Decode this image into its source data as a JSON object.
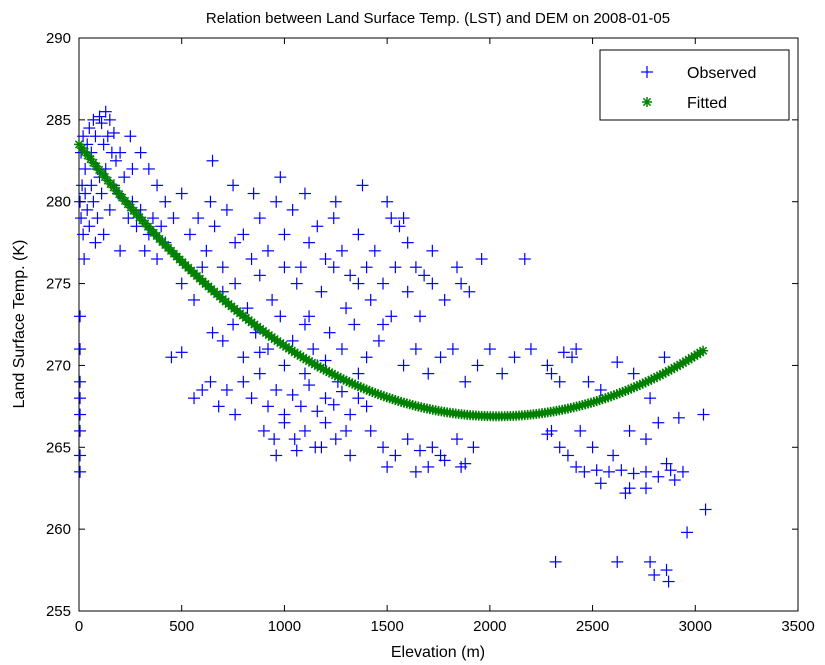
{
  "chart_data": {
    "type": "scatter",
    "title": "Relation between Land Surface Temp. (LST) and DEM on 2008-01-05",
    "xlabel": "Elevation (m)",
    "ylabel": "Land Surface Temp. (K)",
    "xlim": [
      0,
      3500
    ],
    "ylim": [
      255,
      290
    ],
    "xticks": [
      0,
      500,
      1000,
      1500,
      2000,
      2500,
      3000,
      3500
    ],
    "yticks": [
      255,
      260,
      265,
      270,
      275,
      280,
      285,
      290
    ],
    "grid": false,
    "legend_position": "top-right",
    "colors": {
      "observed": "#0000ff",
      "fitted": "#008000"
    },
    "series": [
      {
        "name": "Observed",
        "marker": "plus",
        "points": [
          [
            10,
            283
          ],
          [
            20,
            284
          ],
          [
            30,
            282
          ],
          [
            40,
            283.5
          ],
          [
            50,
            284.5
          ],
          [
            60,
            283
          ],
          [
            70,
            285
          ],
          [
            80,
            284
          ],
          [
            90,
            282
          ],
          [
            100,
            285.2
          ],
          [
            110,
            284.8
          ],
          [
            120,
            283.5
          ],
          [
            130,
            285.5
          ],
          [
            140,
            284
          ],
          [
            150,
            285
          ],
          [
            160,
            283
          ],
          [
            170,
            284.2
          ],
          [
            180,
            282.5
          ],
          [
            200,
            283
          ],
          [
            220,
            281.5
          ],
          [
            5,
            280
          ],
          [
            10,
            279
          ],
          [
            15,
            281
          ],
          [
            20,
            278
          ],
          [
            25,
            276.5
          ],
          [
            30,
            280.5
          ],
          [
            40,
            279.5
          ],
          [
            50,
            278.5
          ],
          [
            60,
            281
          ],
          [
            70,
            280
          ],
          [
            80,
            277.5
          ],
          [
            90,
            279
          ],
          [
            100,
            281.5
          ],
          [
            110,
            280.5
          ],
          [
            120,
            278
          ],
          [
            130,
            282
          ],
          [
            150,
            279.5
          ],
          [
            170,
            281
          ],
          [
            190,
            280.5
          ],
          [
            200,
            277
          ],
          [
            5,
            273
          ],
          [
            5,
            268
          ],
          [
            5,
            267
          ],
          [
            5,
            266
          ],
          [
            5,
            264.5
          ],
          [
            5,
            263.5
          ],
          [
            5,
            269
          ],
          [
            5,
            271
          ],
          [
            240,
            279
          ],
          [
            260,
            280
          ],
          [
            280,
            278.5
          ],
          [
            300,
            279.5
          ],
          [
            320,
            277
          ],
          [
            340,
            278
          ],
          [
            360,
            279
          ],
          [
            380,
            276.5
          ],
          [
            400,
            278.5
          ],
          [
            420,
            277.5
          ],
          [
            260,
            282
          ],
          [
            300,
            283
          ],
          [
            340,
            282
          ],
          [
            250,
            284
          ],
          [
            380,
            281
          ],
          [
            420,
            280
          ],
          [
            460,
            279
          ],
          [
            500,
            280.5
          ],
          [
            540,
            278
          ],
          [
            580,
            279
          ],
          [
            620,
            277
          ],
          [
            660,
            278.5
          ],
          [
            700,
            276
          ],
          [
            640,
            280
          ],
          [
            720,
            279.5
          ],
          [
            760,
            277.5
          ],
          [
            800,
            278
          ],
          [
            840,
            276.5
          ],
          [
            880,
            279
          ],
          [
            920,
            277
          ],
          [
            960,
            280
          ],
          [
            1000,
            278
          ],
          [
            1040,
            279.5
          ],
          [
            1080,
            276
          ],
          [
            1120,
            277.5
          ],
          [
            1160,
            278.5
          ],
          [
            1200,
            276.5
          ],
          [
            1240,
            279
          ],
          [
            1280,
            277
          ],
          [
            1320,
            275.5
          ],
          [
            1360,
            278
          ],
          [
            1400,
            276
          ],
          [
            1440,
            277
          ],
          [
            1480,
            275
          ],
          [
            1520,
            279
          ],
          [
            1560,
            278.5
          ],
          [
            1600,
            277.5
          ],
          [
            1640,
            276
          ],
          [
            1680,
            275.5
          ],
          [
            1720,
            277
          ],
          [
            650,
            282.5
          ],
          [
            750,
            281
          ],
          [
            850,
            280.5
          ],
          [
            980,
            281.5
          ],
          [
            1100,
            280.5
          ],
          [
            1250,
            280
          ],
          [
            1380,
            281
          ],
          [
            1500,
            280
          ],
          [
            1580,
            279
          ],
          [
            500,
            275
          ],
          [
            560,
            274
          ],
          [
            600,
            276
          ],
          [
            700,
            274.5
          ],
          [
            760,
            275
          ],
          [
            820,
            273.5
          ],
          [
            880,
            275.5
          ],
          [
            940,
            274
          ],
          [
            1000,
            276
          ],
          [
            1060,
            275
          ],
          [
            1120,
            273
          ],
          [
            1180,
            274.5
          ],
          [
            1240,
            276
          ],
          [
            1300,
            273.5
          ],
          [
            1360,
            275
          ],
          [
            1420,
            274
          ],
          [
            1480,
            272.5
          ],
          [
            1540,
            276
          ],
          [
            1600,
            274.5
          ],
          [
            1660,
            273
          ],
          [
            1720,
            275
          ],
          [
            1780,
            274
          ],
          [
            1840,
            276
          ],
          [
            1900,
            274.5
          ],
          [
            1960,
            276.5
          ],
          [
            2170,
            276.5
          ],
          [
            1860,
            275
          ],
          [
            650,
            272
          ],
          [
            700,
            271.5
          ],
          [
            750,
            272.5
          ],
          [
            800,
            270.5
          ],
          [
            860,
            272
          ],
          [
            920,
            271
          ],
          [
            980,
            273
          ],
          [
            1040,
            271.5
          ],
          [
            1100,
            272.5
          ],
          [
            1160,
            270
          ],
          [
            1220,
            272
          ],
          [
            1280,
            271
          ],
          [
            1340,
            272.5
          ],
          [
            1400,
            270.5
          ],
          [
            1460,
            271.5
          ],
          [
            1520,
            273
          ],
          [
            1580,
            270
          ],
          [
            1640,
            271
          ],
          [
            1700,
            269.5
          ],
          [
            1760,
            270.5
          ],
          [
            1820,
            271
          ],
          [
            1880,
            269
          ],
          [
            1940,
            270
          ],
          [
            2000,
            271
          ],
          [
            2060,
            269.5
          ],
          [
            2120,
            270.5
          ],
          [
            2200,
            271
          ],
          [
            2280,
            270
          ],
          [
            2340,
            269
          ],
          [
            2400,
            270.5
          ],
          [
            450,
            270.5
          ],
          [
            500,
            270.8
          ],
          [
            560,
            268
          ],
          [
            600,
            268.5
          ],
          [
            640,
            269
          ],
          [
            680,
            267.5
          ],
          [
            720,
            268.5
          ],
          [
            760,
            267
          ],
          [
            800,
            269
          ],
          [
            840,
            268
          ],
          [
            880,
            269.5
          ],
          [
            920,
            267.5
          ],
          [
            960,
            268.5
          ],
          [
            1000,
            267
          ],
          [
            1040,
            268.2
          ],
          [
            1080,
            267.5
          ],
          [
            1120,
            268.8
          ],
          [
            1160,
            267.2
          ],
          [
            1200,
            268
          ],
          [
            1240,
            267.6
          ],
          [
            1280,
            268.4
          ],
          [
            1320,
            267
          ],
          [
            1360,
            268
          ],
          [
            1400,
            267.5
          ],
          [
            900,
            266
          ],
          [
            950,
            265.5
          ],
          [
            1000,
            266.5
          ],
          [
            1050,
            265.5
          ],
          [
            1100,
            266
          ],
          [
            1150,
            265
          ],
          [
            1200,
            266.5
          ],
          [
            1250,
            265.5
          ],
          [
            1300,
            266
          ],
          [
            960,
            264.5
          ],
          [
            1060,
            264.8
          ],
          [
            1180,
            265
          ],
          [
            1320,
            264.5
          ],
          [
            1000,
            270
          ],
          [
            1100,
            269.5
          ],
          [
            1200,
            270.3
          ],
          [
            880,
            270.8
          ],
          [
            1140,
            271
          ],
          [
            1260,
            269
          ],
          [
            1360,
            269.5
          ],
          [
            1420,
            266
          ],
          [
            1480,
            265
          ],
          [
            1540,
            264.5
          ],
          [
            1600,
            265.5
          ],
          [
            1660,
            264.8
          ],
          [
            1720,
            265
          ],
          [
            1780,
            264.2
          ],
          [
            1840,
            265.5
          ],
          [
            1880,
            264
          ],
          [
            1920,
            265
          ],
          [
            1640,
            263.5
          ],
          [
            1700,
            263.8
          ],
          [
            1760,
            264.5
          ],
          [
            1500,
            263.8
          ],
          [
            1860,
            263.8
          ],
          [
            2300,
            266
          ],
          [
            2340,
            265
          ],
          [
            2380,
            264.5
          ],
          [
            2420,
            263.8
          ],
          [
            2460,
            263.5
          ],
          [
            2520,
            263.6
          ],
          [
            2580,
            263.5
          ],
          [
            2640,
            263.6
          ],
          [
            2700,
            263.4
          ],
          [
            2760,
            263.5
          ],
          [
            2820,
            263.2
          ],
          [
            2880,
            263.6
          ],
          [
            2940,
            263.5
          ],
          [
            2600,
            264.5
          ],
          [
            2680,
            266
          ],
          [
            2760,
            265.5
          ],
          [
            2820,
            266.5
          ],
          [
            2860,
            264
          ],
          [
            2900,
            263
          ],
          [
            2920,
            266.8
          ],
          [
            2300,
            269.5
          ],
          [
            2360,
            270.8
          ],
          [
            2420,
            271
          ],
          [
            2480,
            269
          ],
          [
            2540,
            268.5
          ],
          [
            2620,
            270.2
          ],
          [
            2700,
            269.5
          ],
          [
            2780,
            268
          ],
          [
            2850,
            270.5
          ],
          [
            2280,
            265.8
          ],
          [
            3040,
            267
          ],
          [
            3050,
            261.2
          ],
          [
            2960,
            259.8
          ],
          [
            2540,
            262.8
          ],
          [
            2660,
            262.2
          ],
          [
            2760,
            262.5
          ],
          [
            2320,
            258
          ],
          [
            2620,
            258
          ],
          [
            2780,
            258
          ],
          [
            2800,
            257.2
          ],
          [
            2860,
            257.5
          ],
          [
            2870,
            256.8
          ],
          [
            2680,
            262.5
          ],
          [
            2500,
            265
          ],
          [
            2440,
            266
          ]
        ]
      },
      {
        "name": "Fitted",
        "marker": "asterisk",
        "equation_coeffs": [
          283.5,
          -0.0163,
          4e-06
        ],
        "x_range": [
          0,
          3050
        ]
      }
    ]
  }
}
